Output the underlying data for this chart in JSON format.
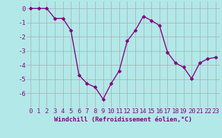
{
  "x": [
    0,
    1,
    2,
    3,
    4,
    5,
    6,
    7,
    8,
    9,
    10,
    11,
    12,
    13,
    14,
    15,
    16,
    17,
    18,
    19,
    20,
    21,
    22,
    23
  ],
  "y": [
    0.0,
    0.0,
    0.0,
    -0.7,
    -0.7,
    -1.55,
    -4.7,
    -5.3,
    -5.55,
    -6.4,
    -5.3,
    -4.4,
    -2.3,
    -1.55,
    -0.55,
    -0.85,
    -1.2,
    -3.1,
    -3.85,
    -4.15,
    -4.95,
    -3.85,
    -3.55,
    -3.45
  ],
  "line_color": "#800080",
  "marker": "D",
  "marker_size": 2.5,
  "bg_color": "#b2e8e8",
  "grid_color": "#aaaaaa",
  "xlabel": "Windchill (Refroidissement éolien,°C)",
  "ylim": [
    -7,
    0.5
  ],
  "xlim": [
    -0.5,
    23.5
  ],
  "yticks": [
    0,
    -1,
    -2,
    -3,
    -4,
    -5,
    -6
  ],
  "xticks": [
    0,
    1,
    2,
    3,
    4,
    5,
    6,
    7,
    8,
    9,
    10,
    11,
    12,
    13,
    14,
    15,
    16,
    17,
    18,
    19,
    20,
    21,
    22,
    23
  ],
  "xlabel_fontsize": 6.5,
  "tick_fontsize": 6.5,
  "linewidth": 1.0
}
